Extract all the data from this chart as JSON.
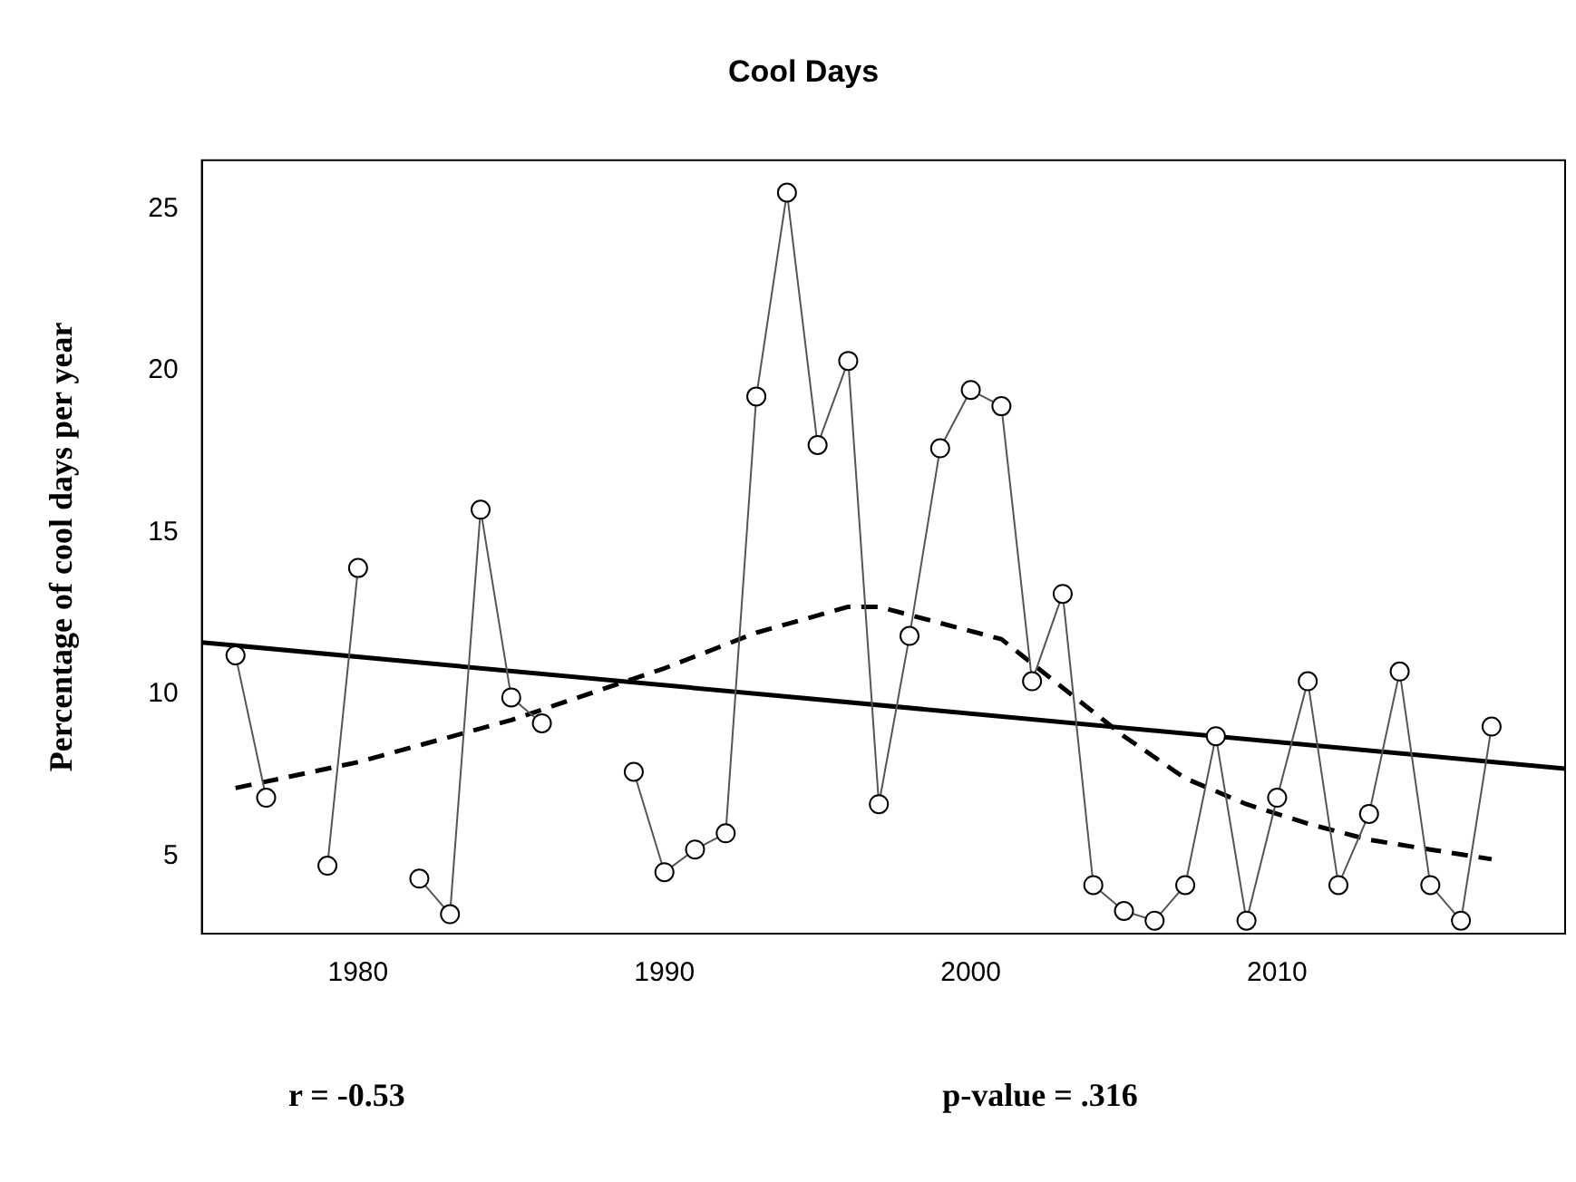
{
  "chart_data": {
    "type": "line",
    "title": "Cool Days",
    "ylabel": "Percentage of cool days per year",
    "annotations": [
      "r = -0.53",
      "p-value = .316"
    ],
    "x": [
      1976,
      1977,
      1978,
      1979,
      1980,
      1981,
      1982,
      1983,
      1984,
      1985,
      1986,
      1987,
      1988,
      1989,
      1990,
      1991,
      1992,
      1993,
      1994,
      1995,
      1996,
      1997,
      1998,
      1999,
      2000,
      2001,
      2002,
      2003,
      2004,
      2005,
      2006,
      2007,
      2008,
      2009,
      2010,
      2011,
      2012,
      2013,
      2014,
      2015,
      2016,
      2017
    ],
    "series": [
      {
        "color": "#555555",
        "marker": "circle",
        "line_style": "solid",
        "values": [
          11.2,
          6.8,
          null,
          4.7,
          13.9,
          null,
          4.3,
          3.2,
          15.7,
          9.9,
          9.1,
          null,
          null,
          7.6,
          4.5,
          5.2,
          5.7,
          19.2,
          25.5,
          17.7,
          20.3,
          6.6,
          11.8,
          17.6,
          19.4,
          18.9,
          10.4,
          13.1,
          4.1,
          3.3,
          3.0,
          4.1,
          8.7,
          3.0,
          6.8,
          10.4,
          4.1,
          6.3,
          10.7,
          4.1,
          3.0,
          9.0
        ]
      },
      {
        "type": "line",
        "color": "#000000",
        "marker": "none",
        "line_style": "solid",
        "x": [
          1974.9,
          2019.4
        ],
        "values": [
          11.6,
          7.7
        ]
      },
      {
        "type": "line",
        "color": "#000000",
        "marker": "none",
        "line_style": "dashed",
        "x": [
          1976,
          1980,
          1985,
          1990,
          1993,
          1996,
          1997,
          1999,
          2001,
          2003,
          2005,
          2007,
          2009,
          2011,
          2013,
          2015,
          2017
        ],
        "values": [
          7.1,
          7.9,
          9.2,
          10.8,
          11.9,
          12.7,
          12.7,
          12.2,
          11.7,
          10.2,
          8.7,
          7.4,
          6.6,
          6.0,
          5.5,
          5.2,
          4.9
        ]
      }
    ],
    "xlim": [
      1974.9,
      2019.4
    ],
    "xticks": [
      1980,
      1990,
      2000,
      2010
    ],
    "ylim": [
      2.6,
      26.5
    ],
    "yticks": [
      5,
      10,
      15,
      20,
      25
    ],
    "grid": false,
    "legend": false
  }
}
